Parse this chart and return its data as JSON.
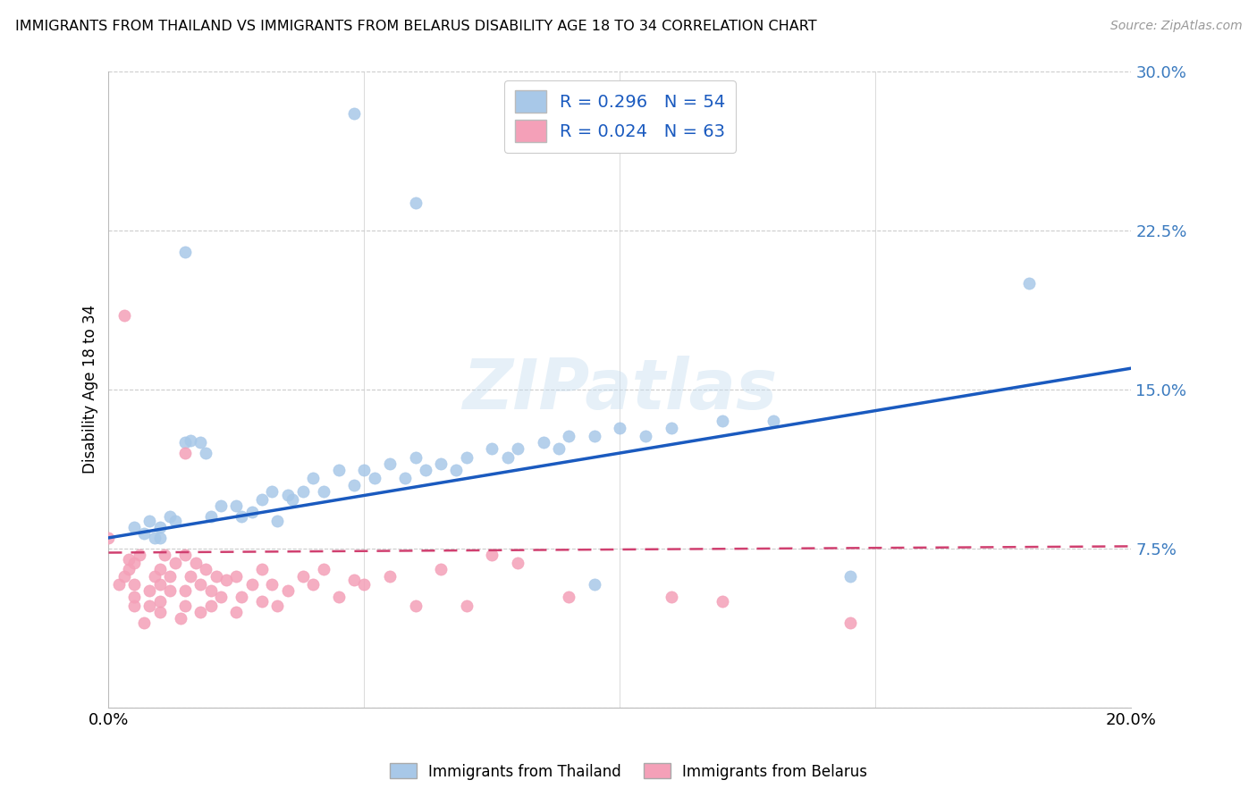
{
  "title": "IMMIGRANTS FROM THAILAND VS IMMIGRANTS FROM BELARUS DISABILITY AGE 18 TO 34 CORRELATION CHART",
  "source": "Source: ZipAtlas.com",
  "ylabel": "Disability Age 18 to 34",
  "xlim": [
    0.0,
    0.2
  ],
  "ylim": [
    0.0,
    0.3
  ],
  "yticks": [
    0.0,
    0.075,
    0.15,
    0.225,
    0.3
  ],
  "yticklabels": [
    "",
    "7.5%",
    "15.0%",
    "22.5%",
    "30.0%"
  ],
  "xticks": [
    0.0,
    0.05,
    0.1,
    0.15,
    0.2
  ],
  "xticklabels": [
    "0.0%",
    "",
    "",
    "",
    "20.0%"
  ],
  "r_thailand": 0.296,
  "n_thailand": 54,
  "r_belarus": 0.024,
  "n_belarus": 63,
  "color_thailand": "#a8c8e8",
  "color_belarus": "#f4a0b8",
  "line_color_thailand": "#1a5abf",
  "line_color_belarus": "#d04070",
  "watermark": "ZIPatlas",
  "thailand_x": [
    0.005,
    0.007,
    0.008,
    0.009,
    0.01,
    0.01,
    0.012,
    0.013,
    0.015,
    0.015,
    0.016,
    0.018,
    0.019,
    0.02,
    0.022,
    0.025,
    0.026,
    0.028,
    0.03,
    0.032,
    0.033,
    0.035,
    0.036,
    0.038,
    0.04,
    0.042,
    0.045,
    0.048,
    0.05,
    0.052,
    0.055,
    0.058,
    0.06,
    0.062,
    0.065,
    0.068,
    0.07,
    0.075,
    0.078,
    0.08,
    0.085,
    0.088,
    0.09,
    0.095,
    0.1,
    0.105,
    0.11,
    0.12,
    0.13,
    0.145,
    0.048,
    0.06,
    0.095,
    0.18
  ],
  "thailand_y": [
    0.085,
    0.082,
    0.088,
    0.08,
    0.085,
    0.08,
    0.09,
    0.088,
    0.215,
    0.125,
    0.126,
    0.125,
    0.12,
    0.09,
    0.095,
    0.095,
    0.09,
    0.092,
    0.098,
    0.102,
    0.088,
    0.1,
    0.098,
    0.102,
    0.108,
    0.102,
    0.112,
    0.105,
    0.112,
    0.108,
    0.115,
    0.108,
    0.118,
    0.112,
    0.115,
    0.112,
    0.118,
    0.122,
    0.118,
    0.122,
    0.125,
    0.122,
    0.128,
    0.128,
    0.132,
    0.128,
    0.132,
    0.135,
    0.135,
    0.062,
    0.28,
    0.238,
    0.058,
    0.2
  ],
  "belarus_x": [
    0.0,
    0.002,
    0.003,
    0.004,
    0.004,
    0.005,
    0.005,
    0.005,
    0.005,
    0.006,
    0.007,
    0.008,
    0.008,
    0.009,
    0.01,
    0.01,
    0.01,
    0.01,
    0.011,
    0.012,
    0.012,
    0.013,
    0.014,
    0.015,
    0.015,
    0.015,
    0.016,
    0.017,
    0.018,
    0.018,
    0.019,
    0.02,
    0.02,
    0.021,
    0.022,
    0.023,
    0.025,
    0.025,
    0.026,
    0.028,
    0.03,
    0.03,
    0.032,
    0.033,
    0.035,
    0.038,
    0.04,
    0.042,
    0.045,
    0.048,
    0.05,
    0.055,
    0.06,
    0.065,
    0.07,
    0.075,
    0.08,
    0.09,
    0.11,
    0.12,
    0.003,
    0.015,
    0.145
  ],
  "belarus_y": [
    0.08,
    0.058,
    0.062,
    0.065,
    0.07,
    0.048,
    0.052,
    0.058,
    0.068,
    0.072,
    0.04,
    0.048,
    0.055,
    0.062,
    0.045,
    0.05,
    0.058,
    0.065,
    0.072,
    0.055,
    0.062,
    0.068,
    0.042,
    0.048,
    0.055,
    0.072,
    0.062,
    0.068,
    0.045,
    0.058,
    0.065,
    0.048,
    0.055,
    0.062,
    0.052,
    0.06,
    0.045,
    0.062,
    0.052,
    0.058,
    0.05,
    0.065,
    0.058,
    0.048,
    0.055,
    0.062,
    0.058,
    0.065,
    0.052,
    0.06,
    0.058,
    0.062,
    0.048,
    0.065,
    0.048,
    0.072,
    0.068,
    0.052,
    0.052,
    0.05,
    0.185,
    0.12,
    0.04
  ]
}
